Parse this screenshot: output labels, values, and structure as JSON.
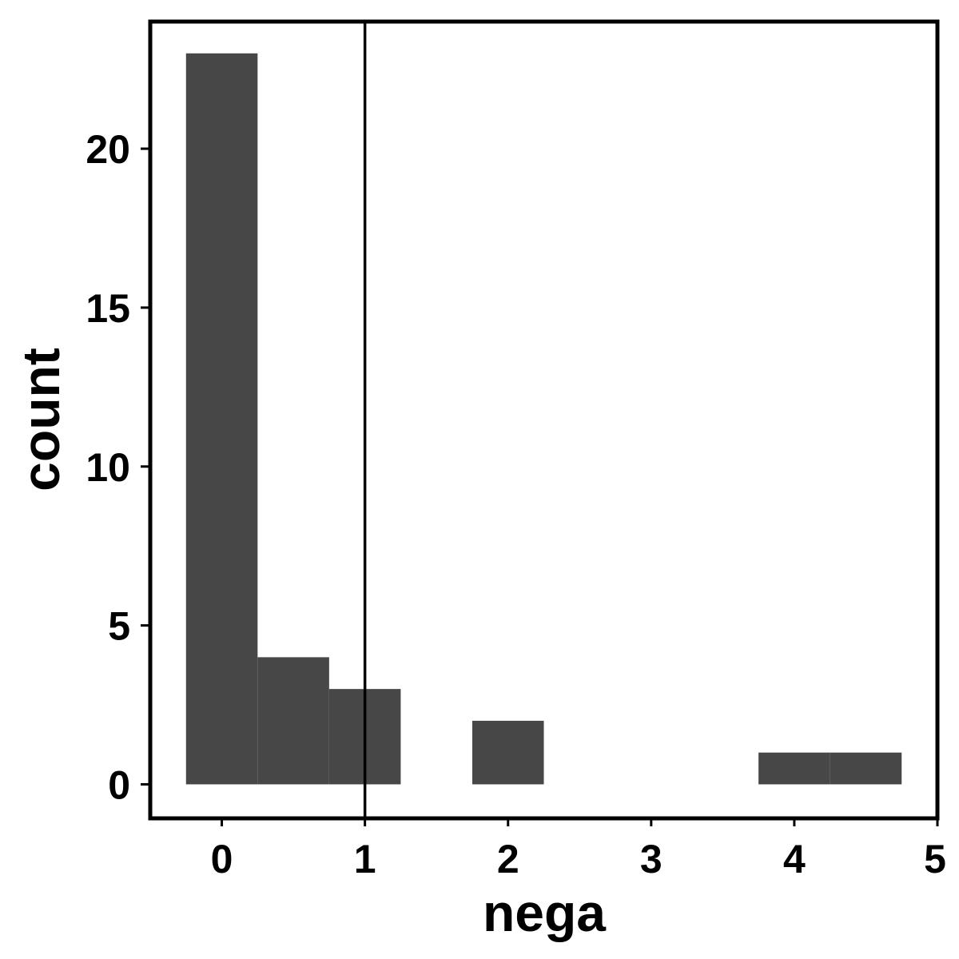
{
  "chart_data": {
    "type": "bar",
    "subtype": "histogram",
    "xlabel": "nega",
    "ylabel": "count",
    "bin_width": 0.5,
    "bins": [
      {
        "center": 0.0,
        "count": 23
      },
      {
        "center": 0.5,
        "count": 4
      },
      {
        "center": 1.0,
        "count": 3
      },
      {
        "center": 1.5,
        "count": 0
      },
      {
        "center": 2.0,
        "count": 2
      },
      {
        "center": 2.5,
        "count": 0
      },
      {
        "center": 3.0,
        "count": 0
      },
      {
        "center": 3.5,
        "count": 0
      },
      {
        "center": 4.0,
        "count": 1
      },
      {
        "center": 4.5,
        "count": 1
      }
    ],
    "xlim": [
      -0.5,
      5.0
    ],
    "ylim": [
      -1.07,
      24.0
    ],
    "xticks": [
      0,
      1,
      2,
      3,
      4,
      5
    ],
    "yticks": [
      0,
      5,
      10,
      15,
      20
    ],
    "vline": 1.0,
    "grid": false,
    "colors": {
      "bar": "#474747",
      "vline": "#000000",
      "frame": "#000000"
    }
  }
}
